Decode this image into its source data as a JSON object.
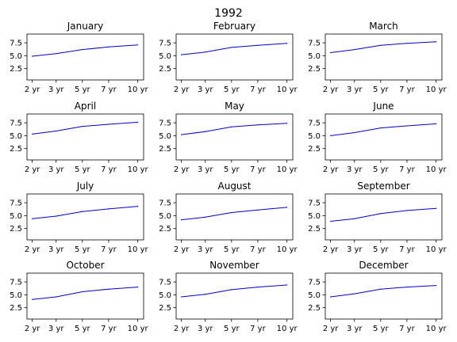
{
  "figure": {
    "title": "1992"
  },
  "colors": {
    "line": "#0000cd"
  },
  "chart_data": [
    {
      "type": "line",
      "title": "January",
      "categories": [
        "2 yr",
        "3 yr",
        "5 yr",
        "7 yr",
        "10 yr"
      ],
      "values": [
        4.9,
        5.4,
        6.2,
        6.7,
        7.1
      ],
      "yticks": [
        "2.5",
        "5.0",
        "7.5"
      ],
      "ylim": [
        0.3,
        9.2
      ]
    },
    {
      "type": "line",
      "title": "February",
      "categories": [
        "2 yr",
        "3 yr",
        "5 yr",
        "7 yr",
        "10 yr"
      ],
      "values": [
        5.2,
        5.7,
        6.6,
        7.0,
        7.4
      ],
      "yticks": [
        "2.5",
        "5.0",
        "7.5"
      ],
      "ylim": [
        0.3,
        9.2
      ]
    },
    {
      "type": "line",
      "title": "March",
      "categories": [
        "2 yr",
        "3 yr",
        "5 yr",
        "7 yr",
        "10 yr"
      ],
      "values": [
        5.6,
        6.2,
        7.0,
        7.4,
        7.7
      ],
      "yticks": [
        "2.5",
        "5.0",
        "7.5"
      ],
      "ylim": [
        0.3,
        9.2
      ]
    },
    {
      "type": "line",
      "title": "April",
      "categories": [
        "2 yr",
        "3 yr",
        "5 yr",
        "7 yr",
        "10 yr"
      ],
      "values": [
        5.3,
        5.9,
        6.8,
        7.2,
        7.6
      ],
      "yticks": [
        "2.5",
        "5.0",
        "7.5"
      ],
      "ylim": [
        0.3,
        9.2
      ]
    },
    {
      "type": "line",
      "title": "May",
      "categories": [
        "2 yr",
        "3 yr",
        "5 yr",
        "7 yr",
        "10 yr"
      ],
      "values": [
        5.2,
        5.8,
        6.7,
        7.1,
        7.4
      ],
      "yticks": [
        "2.5",
        "5.0",
        "7.5"
      ],
      "ylim": [
        0.3,
        9.2
      ]
    },
    {
      "type": "line",
      "title": "June",
      "categories": [
        "2 yr",
        "3 yr",
        "5 yr",
        "7 yr",
        "10 yr"
      ],
      "values": [
        5.0,
        5.6,
        6.5,
        6.9,
        7.3
      ],
      "yticks": [
        "2.5",
        "5.0",
        "7.5"
      ],
      "ylim": [
        0.3,
        9.2
      ]
    },
    {
      "type": "line",
      "title": "July",
      "categories": [
        "2 yr",
        "3 yr",
        "5 yr",
        "7 yr",
        "10 yr"
      ],
      "values": [
        4.4,
        4.9,
        5.8,
        6.3,
        6.8
      ],
      "yticks": [
        "2.5",
        "5.0",
        "7.5"
      ],
      "ylim": [
        0.3,
        9.2
      ]
    },
    {
      "type": "line",
      "title": "August",
      "categories": [
        "2 yr",
        "3 yr",
        "5 yr",
        "7 yr",
        "10 yr"
      ],
      "values": [
        4.2,
        4.7,
        5.6,
        6.1,
        6.6
      ],
      "yticks": [
        "2.5",
        "5.0",
        "7.5"
      ],
      "ylim": [
        0.3,
        9.2
      ]
    },
    {
      "type": "line",
      "title": "September",
      "categories": [
        "2 yr",
        "3 yr",
        "5 yr",
        "7 yr",
        "10 yr"
      ],
      "values": [
        3.9,
        4.4,
        5.4,
        6.0,
        6.4
      ],
      "yticks": [
        "2.5",
        "5.0",
        "7.5"
      ],
      "ylim": [
        0.3,
        9.2
      ]
    },
    {
      "type": "line",
      "title": "October",
      "categories": [
        "2 yr",
        "3 yr",
        "5 yr",
        "7 yr",
        "10 yr"
      ],
      "values": [
        4.1,
        4.6,
        5.6,
        6.1,
        6.5
      ],
      "yticks": [
        "2.5",
        "5.0",
        "7.5"
      ],
      "ylim": [
        0.3,
        9.2
      ]
    },
    {
      "type": "line",
      "title": "November",
      "categories": [
        "2 yr",
        "3 yr",
        "5 yr",
        "7 yr",
        "10 yr"
      ],
      "values": [
        4.6,
        5.1,
        6.0,
        6.5,
        6.9
      ],
      "yticks": [
        "2.5",
        "5.0",
        "7.5"
      ],
      "ylim": [
        0.3,
        9.2
      ]
    },
    {
      "type": "line",
      "title": "December",
      "categories": [
        "2 yr",
        "3 yr",
        "5 yr",
        "7 yr",
        "10 yr"
      ],
      "values": [
        4.6,
        5.2,
        6.1,
        6.5,
        6.8
      ],
      "yticks": [
        "2.5",
        "5.0",
        "7.5"
      ],
      "ylim": [
        0.3,
        9.2
      ]
    }
  ]
}
